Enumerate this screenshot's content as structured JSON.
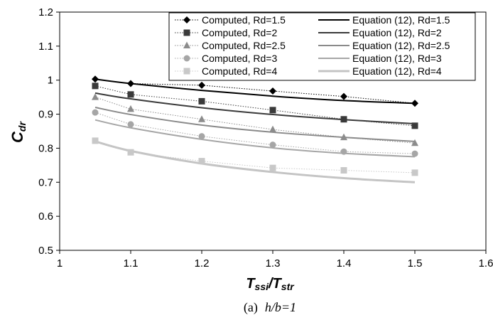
{
  "chart_data": {
    "type": "line",
    "title": "",
    "xlabel": {
      "main": "T",
      "sub1": "ssi",
      "slash": "/T",
      "sub2": "str"
    },
    "ylabel": {
      "main": "C",
      "sub": "dr"
    },
    "xlim": [
      1,
      1.6
    ],
    "ylim": [
      0.5,
      1.2
    ],
    "xticks": [
      "1",
      "1.1",
      "1.2",
      "1.3",
      "1.4",
      "1.5",
      "1.6"
    ],
    "yticks": [
      "0.5",
      "0.6",
      "0.7",
      "0.8",
      "0.9",
      "1",
      "1.1",
      "1.2"
    ],
    "grid": false,
    "legend_position": "top-right",
    "caption": {
      "prefix": "(a)",
      "text": "h/b=1"
    },
    "computed_series": [
      {
        "name": "Computed, Rd=1.5",
        "marker": "diamond",
        "color": "#000000",
        "x": [
          1.05,
          1.1,
          1.2,
          1.3,
          1.4,
          1.5
        ],
        "y": [
          1.003,
          0.99,
          0.985,
          0.968,
          0.952,
          0.932
        ]
      },
      {
        "name": "Computed, Rd=2",
        "marker": "square",
        "color": "#3a3a3a",
        "x": [
          1.05,
          1.1,
          1.2,
          1.3,
          1.4,
          1.5
        ],
        "y": [
          0.983,
          0.958,
          0.938,
          0.912,
          0.885,
          0.866
        ]
      },
      {
        "name": "Computed, Rd=2.5",
        "marker": "triangle",
        "color": "#8c8c8c",
        "x": [
          1.05,
          1.1,
          1.2,
          1.3,
          1.4,
          1.5
        ],
        "y": [
          0.95,
          0.915,
          0.885,
          0.855,
          0.832,
          0.815
        ]
      },
      {
        "name": "Computed, Rd=3",
        "marker": "circle",
        "color": "#a6a6a6",
        "x": [
          1.05,
          1.1,
          1.2,
          1.3,
          1.4,
          1.5
        ],
        "y": [
          0.905,
          0.87,
          0.835,
          0.81,
          0.79,
          0.784
        ]
      },
      {
        "name": "Computed, Rd=4",
        "marker": "square",
        "color": "#c8c8c8",
        "x": [
          1.05,
          1.1,
          1.2,
          1.3,
          1.4,
          1.5
        ],
        "y": [
          0.822,
          0.788,
          0.762,
          0.742,
          0.735,
          0.728
        ]
      }
    ],
    "equation_series": [
      {
        "name": "Equation (12), Rd=1.5",
        "color": "#000000",
        "width": 2,
        "x": [
          1.05,
          1.1,
          1.2,
          1.3,
          1.4,
          1.5
        ],
        "y": [
          1.003,
          0.99,
          0.97,
          0.953,
          0.94,
          0.932
        ]
      },
      {
        "name": "Equation (12), Rd=2",
        "color": "#3a3a3a",
        "width": 2,
        "x": [
          1.05,
          1.1,
          1.2,
          1.3,
          1.4,
          1.5
        ],
        "y": [
          0.962,
          0.945,
          0.919,
          0.899,
          0.884,
          0.872
        ]
      },
      {
        "name": "Equation (12), Rd=2.5",
        "color": "#8a8a8a",
        "width": 2,
        "x": [
          1.05,
          1.1,
          1.2,
          1.3,
          1.4,
          1.5
        ],
        "y": [
          0.92,
          0.899,
          0.868,
          0.847,
          0.832,
          0.82
        ]
      },
      {
        "name": "Equation (12), Rd=3",
        "color": "#a6a6a6",
        "width": 2,
        "x": [
          1.05,
          1.1,
          1.2,
          1.3,
          1.4,
          1.5
        ],
        "y": [
          0.883,
          0.86,
          0.826,
          0.801,
          0.785,
          0.775
        ]
      },
      {
        "name": "Equation (12), Rd=4",
        "color": "#c4c4c4",
        "width": 3,
        "x": [
          1.05,
          1.1,
          1.2,
          1.3,
          1.4,
          1.5
        ],
        "y": [
          0.82,
          0.792,
          0.755,
          0.73,
          0.712,
          0.7
        ]
      }
    ]
  }
}
